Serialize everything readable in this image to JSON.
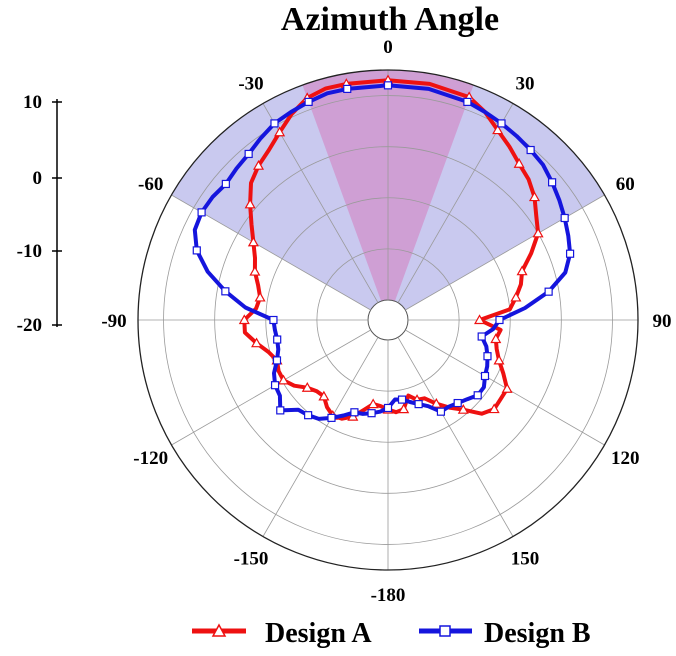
{
  "chart_data": {
    "type": "polar-line",
    "title": "Azimuth Angle",
    "angle_unit": "degrees",
    "angle_zero": "top",
    "angle_direction": "clockwise",
    "angular_tick_labels": [
      "0",
      "30",
      "60",
      "90",
      "120",
      "150",
      "-180",
      "-150",
      "-120",
      "-90",
      "-60",
      "-30"
    ],
    "angular_ticks": [
      0,
      30,
      60,
      90,
      120,
      150,
      180,
      210,
      240,
      270,
      300,
      330
    ],
    "radial_tick_labels": [
      "10",
      "0",
      "-10",
      "-20"
    ],
    "radial_ticks": [
      10,
      0,
      -10,
      -20
    ],
    "radial_range": [
      -30,
      15
    ],
    "grid": true,
    "shaded_sectors": [
      {
        "from": -60,
        "to": 60,
        "color": "#c9c9ef"
      },
      {
        "from": -20,
        "to": 20,
        "color": "#cf9fd4"
      }
    ],
    "legend_position": "bottom",
    "series": [
      {
        "name": "Design A",
        "color": "#ee1111",
        "marker": "triangle",
        "angles": [
          0,
          10,
          20,
          25,
          30,
          35,
          40,
          45,
          50,
          55,
          60,
          65,
          70,
          75,
          80,
          85,
          90,
          95,
          100,
          105,
          110,
          115,
          120,
          125,
          130,
          135,
          140,
          145,
          150,
          155,
          160,
          165,
          170,
          175,
          180,
          185,
          190,
          195,
          200,
          205,
          210,
          215,
          220,
          225,
          230,
          235,
          240,
          245,
          250,
          255,
          260,
          265,
          270,
          275,
          280,
          285,
          290,
          295,
          300,
          305,
          310,
          315,
          320,
          325,
          330,
          335,
          340,
          345,
          350
        ],
        "values": [
          13,
          13,
          12.5,
          11,
          9,
          7.5,
          6,
          5,
          3.5,
          1.5,
          0,
          -3,
          -6,
          -7,
          -8.5,
          -10,
          -16,
          -11.8,
          -12.5,
          -11.9,
          -10.8,
          -9,
          -7,
          -7,
          -6.8,
          -8,
          -11,
          -13,
          -15,
          -17,
          -17.3,
          -18.6,
          -16.2,
          -15.8,
          -16.4,
          -17,
          -17.2,
          -15.7,
          -13.8,
          -12.6,
          -12.3,
          -13.1,
          -14.4,
          -14.2,
          -13.3,
          -11.5,
          -10.3,
          -10.3,
          -10.8,
          -9.7,
          -7.8,
          -5.8,
          -5.8,
          -8,
          -8.5,
          -7.6,
          -6.2,
          -5.2,
          -3.5,
          -1.3,
          1.3,
          4,
          5.5,
          6.7,
          8.5,
          10.6,
          12.3,
          13,
          13
        ]
      },
      {
        "name": "Design B",
        "color": "#1515dd",
        "marker": "square",
        "angles": [
          0,
          10,
          20,
          25,
          30,
          35,
          40,
          45,
          50,
          55,
          60,
          65,
          70,
          75,
          80,
          85,
          90,
          95,
          100,
          105,
          110,
          115,
          120,
          125,
          130,
          135,
          140,
          145,
          150,
          155,
          160,
          165,
          170,
          175,
          180,
          185,
          190,
          195,
          200,
          205,
          210,
          215,
          220,
          225,
          230,
          235,
          240,
          245,
          250,
          255,
          260,
          265,
          270,
          275,
          280,
          285,
          290,
          295,
          300,
          305,
          310,
          315,
          320,
          325,
          330,
          335,
          340,
          345,
          350
        ],
        "values": [
          12,
          12,
          11.5,
          11,
          10.5,
          10,
          9.5,
          9,
          8,
          7,
          6,
          5,
          4,
          2,
          -2,
          -7,
          -12.1,
          -13.3,
          -15.3,
          -14,
          -13.2,
          -12.5,
          -12,
          -11,
          -11,
          -12,
          -12.7,
          -13.2,
          -13.2,
          -15.3,
          -16.4,
          -17.3,
          -18.1,
          -18.3,
          -16.7,
          -15.9,
          -15.4,
          -14.9,
          -14.7,
          -13.3,
          -11.8,
          -10.3,
          -9.6,
          -9.1,
          -6.4,
          -8.1,
          -8.4,
          -9.3,
          -10.8,
          -11.7,
          -11.9,
          -11.7,
          -11.5,
          -5.9,
          -1.6,
          2.6,
          5.9,
          7.8,
          8.2,
          8,
          7.5,
          8,
          8.5,
          9.5,
          10.5,
          11,
          11.5,
          12,
          12
        ]
      }
    ]
  }
}
